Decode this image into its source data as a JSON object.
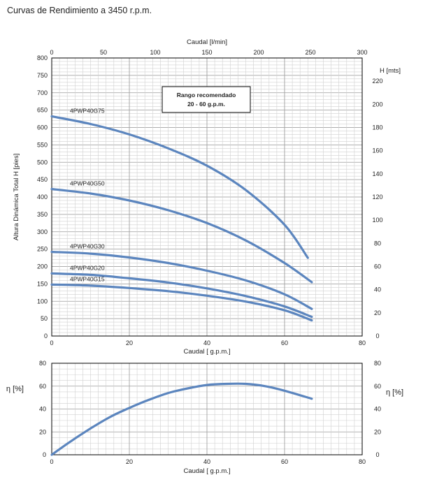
{
  "page": {
    "title": "Curvas de Rendimiento a 3450 r.p.m."
  },
  "colors": {
    "curve": "#5b85be",
    "grid_major": "#9a9a9a",
    "grid_minor": "#d0d0d0",
    "axis": "#000000"
  },
  "chart_data": [
    {
      "type": "line",
      "title": "",
      "xlabel": "Caudal [ g.p.m.]",
      "xlabel_top": "Caudal [l/min]",
      "ylabel": "Altura Dinámica Total H [pies]",
      "ylabel_right": "H [mts]",
      "xlim": [
        0,
        80
      ],
      "ylim": [
        0,
        800
      ],
      "x_top_lim": [
        0,
        300
      ],
      "y_right_lim": [
        0,
        240
      ],
      "x_ticks": [
        "0",
        "20",
        "40",
        "60",
        "80"
      ],
      "x_top_ticks": [
        "0",
        "50",
        "100",
        "150",
        "200",
        "250",
        "300"
      ],
      "y_ticks": [
        "0",
        "50",
        "100",
        "150",
        "200",
        "250",
        "300",
        "350",
        "400",
        "450",
        "500",
        "550",
        "600",
        "650",
        "700",
        "750",
        "800"
      ],
      "y_right_ticks": [
        "0",
        "20",
        "40",
        "60",
        "80",
        "100",
        "120",
        "140",
        "160",
        "180",
        "200",
        "220"
      ],
      "grid": true,
      "annotation": {
        "line1": "Rango recomendado",
        "line2": "20 - 60 g.p.m."
      },
      "series": [
        {
          "name": "4PWP40G75",
          "x": [
            0,
            10,
            20,
            30,
            40,
            50,
            60,
            66
          ],
          "y": [
            632,
            610,
            580,
            540,
            490,
            420,
            320,
            225
          ]
        },
        {
          "name": "4PWP40G50",
          "x": [
            0,
            10,
            20,
            30,
            40,
            50,
            60,
            67
          ],
          "y": [
            423,
            410,
            390,
            362,
            325,
            275,
            210,
            155
          ]
        },
        {
          "name": "4PWP40G30",
          "x": [
            0,
            10,
            20,
            30,
            40,
            50,
            60,
            67
          ],
          "y": [
            242,
            237,
            226,
            210,
            188,
            160,
            120,
            78
          ]
        },
        {
          "name": "4PWP40G20",
          "x": [
            0,
            10,
            20,
            30,
            40,
            50,
            60,
            67
          ],
          "y": [
            180,
            176,
            166,
            154,
            137,
            115,
            85,
            55
          ]
        },
        {
          "name": "4PWP40G15",
          "x": [
            0,
            10,
            20,
            30,
            40,
            50,
            60,
            67
          ],
          "y": [
            148,
            145,
            138,
            129,
            116,
            99,
            74,
            45
          ]
        }
      ]
    },
    {
      "type": "line",
      "title": "",
      "xlabel": "Caudal [ g.p.m.]",
      "ylabel": "η [%]",
      "ylabel_right": "η [%]",
      "xlim": [
        0,
        80
      ],
      "ylim": [
        0,
        80
      ],
      "x_ticks": [
        "0",
        "20",
        "40",
        "60",
        "80"
      ],
      "y_ticks": [
        "0",
        "20",
        "40",
        "60",
        "80"
      ],
      "grid": true,
      "series": [
        {
          "x": [
            0,
            5,
            10,
            15,
            20,
            25,
            30,
            35,
            40,
            45,
            50,
            55,
            60,
            67
          ],
          "y": [
            0,
            12,
            23,
            33,
            41,
            48,
            54,
            58,
            61,
            62,
            62,
            60,
            56,
            49
          ]
        }
      ]
    }
  ]
}
